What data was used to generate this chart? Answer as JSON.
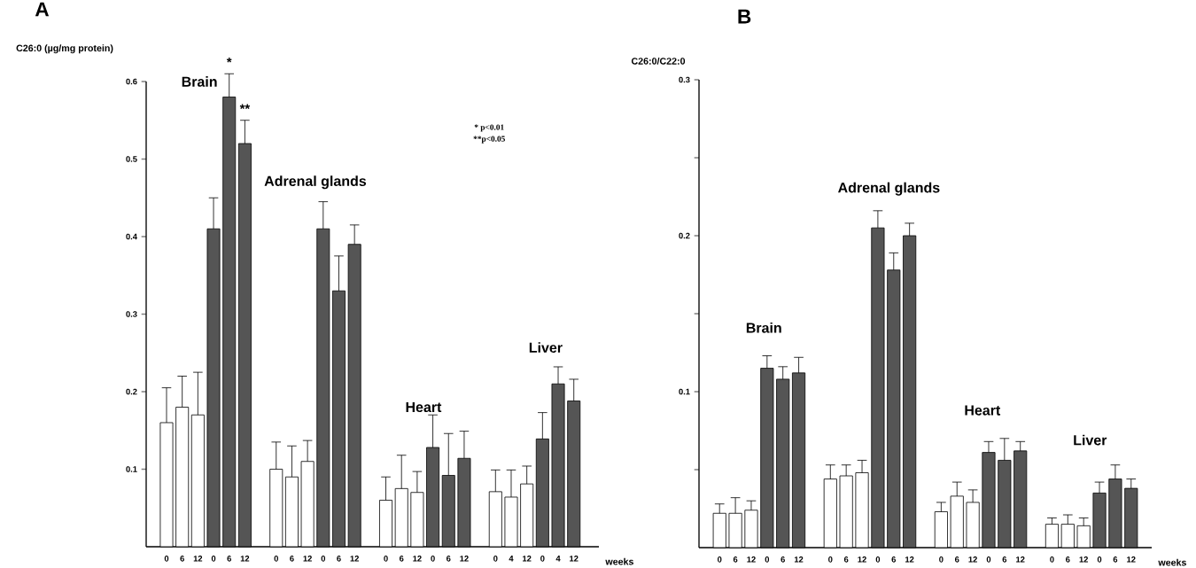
{
  "chart_data": [
    {
      "type": "bar",
      "title": "A",
      "ylabel": "C26:0 (µg/mg protein)",
      "xlabel": "weeks",
      "categories": [
        "0",
        "6",
        "12",
        "0",
        "6",
        "12",
        null,
        "0",
        "6",
        "12",
        "0",
        "6",
        "12",
        null,
        "0",
        "6",
        "12",
        "0",
        "6",
        "12",
        null,
        "0",
        "4",
        "12",
        "0",
        "4",
        "12"
      ],
      "values": [
        0.16,
        0.18,
        0.17,
        0.41,
        0.58,
        0.52,
        null,
        0.1,
        0.09,
        0.11,
        0.41,
        0.33,
        0.39,
        null,
        0.06,
        0.075,
        0.07,
        0.128,
        0.092,
        0.114,
        null,
        0.071,
        0.064,
        0.081,
        0.139,
        0.21,
        0.188
      ],
      "errors": [
        [
          0.16,
          0.205
        ],
        [
          0.18,
          0.22
        ],
        [
          0.17,
          0.225
        ],
        [
          0.41,
          0.45
        ],
        [
          0.58,
          0.61
        ],
        [
          0.52,
          0.55
        ],
        null,
        [
          0.1,
          0.135
        ],
        [
          0.09,
          0.13
        ],
        [
          0.11,
          0.137
        ],
        [
          0.41,
          0.445
        ],
        [
          0.33,
          0.375
        ],
        [
          0.39,
          0.415
        ],
        null,
        [
          0.06,
          0.09
        ],
        [
          0.075,
          0.118
        ],
        [
          0.07,
          0.097
        ],
        [
          0.128,
          0.17
        ],
        [
          0.092,
          0.146
        ],
        [
          0.114,
          0.149
        ],
        null,
        [
          0.071,
          0.099
        ],
        [
          0.064,
          0.099
        ],
        [
          0.081,
          0.104
        ],
        [
          0.139,
          0.173
        ],
        [
          0.21,
          0.232
        ],
        [
          0.188,
          0.216
        ]
      ],
      "colors": [
        "#ffffff",
        "#ffffff",
        "#ffffff",
        "#555555",
        "#555555",
        "#555555",
        null,
        "#ffffff",
        "#ffffff",
        "#ffffff",
        "#555555",
        "#555555",
        "#555555",
        null,
        "#ffffff",
        "#ffffff",
        "#ffffff",
        "#555555",
        "#555555",
        "#555555",
        null,
        "#ffffff",
        "#ffffff",
        "#ffffff",
        "#555555",
        "#555555",
        "#555555"
      ],
      "ylim": [
        0,
        0.6
      ],
      "yticks": [
        0.1,
        0.2,
        0.3,
        0.4,
        0.5,
        0.6
      ],
      "annotations": [
        "Brain",
        "Adrenal glands",
        "Heart",
        "Liver",
        "*",
        "**",
        "* p<0.01",
        "**p<0.05"
      ]
    },
    {
      "type": "bar",
      "title": "B",
      "ylabel": "C26:0/C22:0",
      "xlabel": "weeks",
      "categories": [
        "0",
        "6",
        "12",
        "0",
        "6",
        "12",
        null,
        "0",
        "6",
        "12",
        "0",
        "6",
        "12",
        null,
        "0",
        "6",
        "12",
        "0",
        "6",
        "12",
        null,
        "0",
        "6",
        "12",
        "0",
        "6",
        "12"
      ],
      "values": [
        0.022,
        0.022,
        0.024,
        0.115,
        0.108,
        0.112,
        null,
        0.044,
        0.046,
        0.048,
        0.205,
        0.178,
        0.2,
        null,
        0.023,
        0.033,
        0.029,
        0.061,
        0.056,
        0.062,
        null,
        0.015,
        0.015,
        0.014,
        0.035,
        0.044,
        0.038
      ],
      "errors": [
        [
          0.022,
          0.028
        ],
        [
          0.022,
          0.032
        ],
        [
          0.024,
          0.03
        ],
        [
          0.115,
          0.123
        ],
        [
          0.108,
          0.116
        ],
        [
          0.112,
          0.122
        ],
        null,
        [
          0.044,
          0.053
        ],
        [
          0.046,
          0.053
        ],
        [
          0.048,
          0.056
        ],
        [
          0.205,
          0.216
        ],
        [
          0.178,
          0.189
        ],
        [
          0.2,
          0.208
        ],
        null,
        [
          0.023,
          0.029
        ],
        [
          0.033,
          0.042
        ],
        [
          0.029,
          0.037
        ],
        [
          0.061,
          0.068
        ],
        [
          0.056,
          0.07
        ],
        [
          0.062,
          0.068
        ],
        null,
        [
          0.015,
          0.019
        ],
        [
          0.015,
          0.021
        ],
        [
          0.014,
          0.019
        ],
        [
          0.035,
          0.042
        ],
        [
          0.044,
          0.053
        ],
        [
          0.038,
          0.044
        ]
      ],
      "colors": [
        "#ffffff",
        "#ffffff",
        "#ffffff",
        "#555555",
        "#555555",
        "#555555",
        null,
        "#ffffff",
        "#ffffff",
        "#ffffff",
        "#555555",
        "#555555",
        "#555555",
        null,
        "#ffffff",
        "#ffffff",
        "#ffffff",
        "#555555",
        "#555555",
        "#555555",
        null,
        "#ffffff",
        "#ffffff",
        "#ffffff",
        "#555555",
        "#555555",
        "#555555"
      ],
      "ylim": [
        0,
        0.3
      ],
      "yticks": [
        {
          "value": 0.05,
          "label": null
        },
        0.1,
        {
          "value": 0.15,
          "label": null
        },
        0.2,
        {
          "value": 0.25,
          "label": null
        },
        0.3
      ],
      "annotations": [
        "Brain",
        "Adrenal glands",
        "Heart",
        "Liver"
      ]
    }
  ]
}
